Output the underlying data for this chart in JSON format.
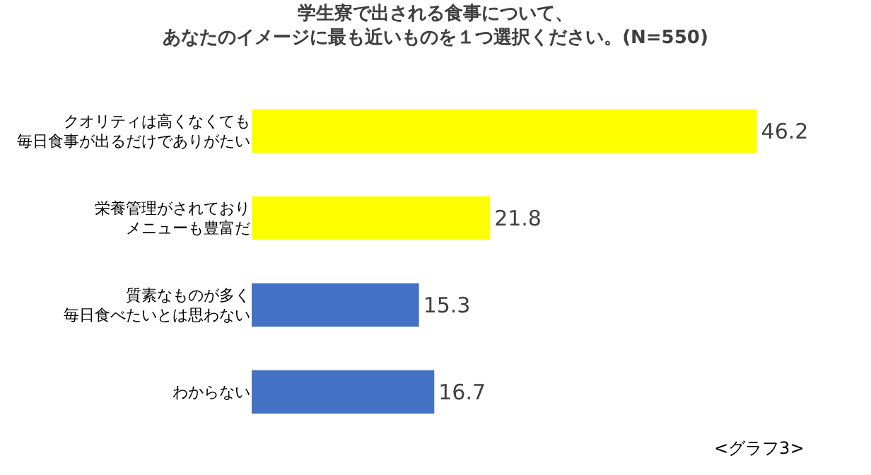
{
  "chart_data": {
    "type": "bar",
    "orientation": "horizontal",
    "title": "学生寮で出される食事について、あなたのイメージに最も近いものを１つ選択ください。(N=550)",
    "categories": [
      "クオリティは高くなくても毎日食事が出るだけでありがたい",
      "栄養管理がされておりメニューも豊富だ",
      "質素なものが多く毎日食べたいとは思わない",
      "わからない"
    ],
    "values": [
      46.2,
      21.8,
      15.3,
      16.7
    ],
    "colors": [
      "#ffff00",
      "#ffff00",
      "#4472c4",
      "#4472c4"
    ],
    "data_labels": true,
    "annotations": [
      "<グラフ3>"
    ]
  }
}
